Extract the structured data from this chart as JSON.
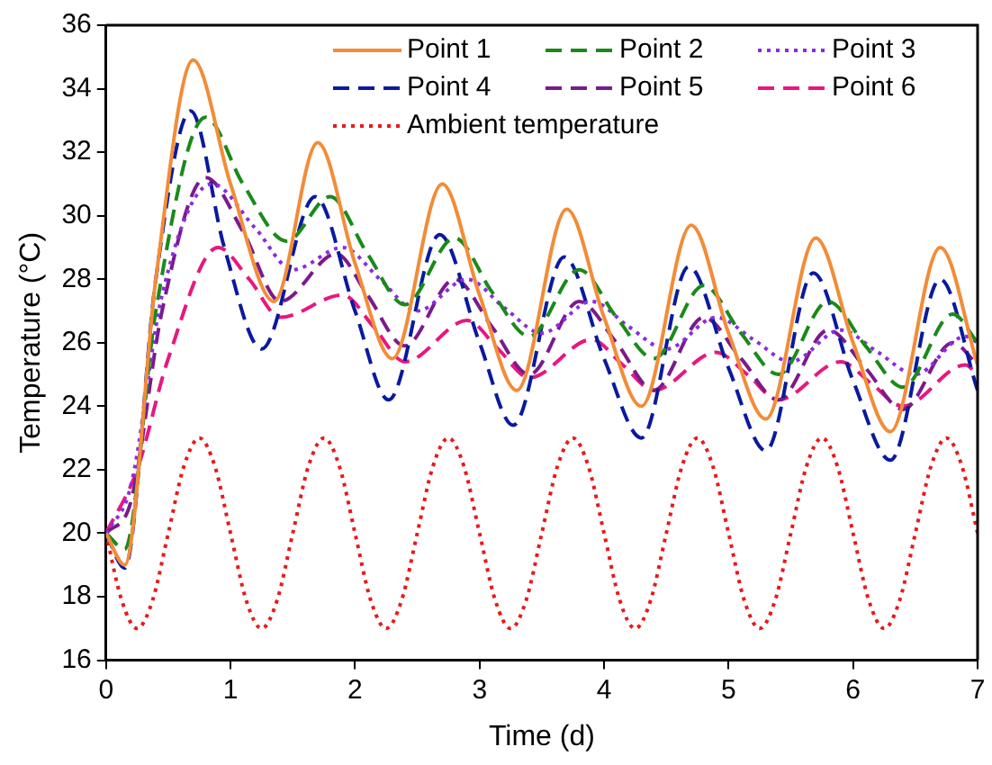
{
  "chart_data": {
    "type": "line",
    "xlabel": "Time (d)",
    "ylabel": "Temperature (°C)",
    "xlim": [
      0,
      7
    ],
    "ylim": [
      16,
      36
    ],
    "xticks": [
      0,
      1,
      2,
      3,
      4,
      5,
      6,
      7
    ],
    "yticks": [
      16,
      18,
      20,
      22,
      24,
      26,
      28,
      30,
      32,
      34,
      36
    ],
    "grid": false,
    "legend": "top right",
    "marker": "none",
    "series": [
      {
        "name": "Point 1",
        "color": "#f28c38",
        "line_style": "solid",
        "x": [
          0,
          0.15,
          0.4,
          0.7,
          1.0,
          1.35,
          1.7,
          2.0,
          2.3,
          2.7,
          3.0,
          3.3,
          3.7,
          4.0,
          4.3,
          4.7,
          5.0,
          5.3,
          5.7,
          6.0,
          6.3,
          6.7,
          7.0
        ],
        "values": [
          20,
          19,
          28,
          34.9,
          31,
          27.3,
          32.3,
          28.5,
          25.5,
          31,
          27.5,
          24.5,
          30.2,
          26.8,
          24,
          29.7,
          26.3,
          23.6,
          29.3,
          26,
          23.2,
          29,
          25.3
        ]
      },
      {
        "name": "Point 2",
        "color": "#1a8a1a",
        "line_style": "dashed",
        "x": [
          0,
          0.15,
          0.4,
          0.8,
          1.1,
          1.45,
          1.8,
          2.1,
          2.4,
          2.8,
          3.1,
          3.4,
          3.8,
          4.1,
          4.4,
          4.8,
          5.1,
          5.4,
          5.8,
          6.1,
          6.4,
          6.8,
          7.0
        ],
        "values": [
          20,
          19.5,
          27,
          33.1,
          31,
          29.2,
          30.6,
          28.8,
          27.2,
          29.3,
          27.6,
          26.2,
          28.3,
          26.8,
          25.5,
          27.8,
          26.3,
          25,
          27.3,
          25.9,
          24.6,
          26.9,
          26
        ]
      },
      {
        "name": "Point 3",
        "color": "#8a2be2",
        "line_style": "dotted",
        "x": [
          0,
          0.2,
          0.45,
          0.85,
          1.2,
          1.5,
          1.9,
          2.2,
          2.5,
          2.9,
          3.2,
          3.5,
          3.9,
          4.2,
          4.5,
          4.9,
          5.2,
          5.5,
          5.9,
          6.2,
          6.5,
          6.9,
          7.0
        ],
        "values": [
          20,
          21.5,
          27.5,
          31,
          29.6,
          28.3,
          29,
          28,
          27,
          28,
          27.1,
          26.3,
          27.3,
          26.5,
          25.8,
          26.8,
          26.1,
          25.4,
          26.4,
          25.7,
          25,
          26.2,
          26
        ]
      },
      {
        "name": "Point 4",
        "color": "#0a1a9e",
        "line_style": "dashed",
        "x": [
          0,
          0.15,
          0.4,
          0.68,
          0.95,
          1.25,
          1.68,
          2.0,
          2.27,
          2.68,
          3.0,
          3.27,
          3.68,
          4.0,
          4.3,
          4.68,
          5.0,
          5.3,
          5.68,
          6.0,
          6.3,
          6.7,
          7.0
        ],
        "values": [
          20,
          18.9,
          28,
          33.3,
          29,
          25.8,
          30.6,
          27,
          24.2,
          29.4,
          26,
          23.4,
          28.7,
          25.5,
          23,
          28.4,
          25.2,
          22.6,
          28.2,
          24.8,
          22.3,
          28,
          24.5
        ]
      },
      {
        "name": "Point 5",
        "color": "#7b1a8c",
        "line_style": "dashed",
        "x": [
          0,
          0.2,
          0.45,
          0.8,
          1.1,
          1.4,
          1.85,
          2.1,
          2.4,
          2.8,
          3.1,
          3.4,
          3.8,
          4.1,
          4.4,
          4.8,
          5.1,
          5.4,
          5.8,
          6.1,
          6.4,
          6.8,
          7.0
        ],
        "values": [
          20,
          21,
          27,
          31.2,
          29.5,
          27.3,
          28.8,
          27.5,
          25.9,
          28,
          26.5,
          25,
          27.3,
          26,
          24.5,
          26.8,
          25.5,
          24.2,
          26.4,
          25.2,
          23.9,
          26,
          25.3
        ]
      },
      {
        "name": "Point 6",
        "color": "#e8177f",
        "line_style": "dashed",
        "x": [
          0,
          0.25,
          0.5,
          0.9,
          1.15,
          1.4,
          1.9,
          2.15,
          2.4,
          2.9,
          3.15,
          3.4,
          3.9,
          4.15,
          4.4,
          4.9,
          5.15,
          5.4,
          5.9,
          6.15,
          6.4,
          6.9,
          7.0
        ],
        "values": [
          20,
          22,
          25.5,
          29,
          28,
          26.8,
          27.5,
          26.5,
          25.4,
          26.7,
          25.8,
          24.9,
          26.1,
          25.3,
          24.5,
          25.7,
          25,
          24.2,
          25.4,
          24.7,
          24,
          25.3,
          25
        ]
      },
      {
        "name": "Ambient temperature",
        "color": "#e8191b",
        "line_style": "dotted",
        "x": [
          0,
          0.125,
          0.25,
          0.375,
          0.5,
          0.625,
          0.75,
          0.875,
          1,
          1.125,
          1.25,
          1.375,
          1.5,
          1.625,
          1.75,
          1.875,
          2,
          2.125,
          2.25,
          2.375,
          2.5,
          2.625,
          2.75,
          2.875,
          3,
          3.125,
          3.25,
          3.375,
          3.5,
          3.625,
          3.75,
          3.875,
          4,
          4.125,
          4.25,
          4.375,
          4.5,
          4.625,
          4.75,
          4.875,
          5,
          5.125,
          5.25,
          5.375,
          5.5,
          5.625,
          5.75,
          5.875,
          6,
          6.125,
          6.25,
          6.375,
          6.5,
          6.625,
          6.75,
          6.875,
          7
        ],
        "values": [
          20,
          17.9,
          17,
          17.9,
          20,
          22.1,
          23,
          22.1,
          20,
          17.9,
          17,
          17.9,
          20,
          22.1,
          23,
          22.1,
          20,
          17.9,
          17,
          17.9,
          20,
          22.1,
          23,
          22.1,
          20,
          17.9,
          17,
          17.9,
          20,
          22.1,
          23,
          22.1,
          20,
          17.9,
          17,
          17.9,
          20,
          22.1,
          23,
          22.1,
          20,
          17.9,
          17,
          17.9,
          20,
          22.1,
          23,
          22.1,
          20,
          17.9,
          17,
          17.9,
          20,
          22.1,
          23,
          22.1,
          20
        ]
      }
    ]
  }
}
